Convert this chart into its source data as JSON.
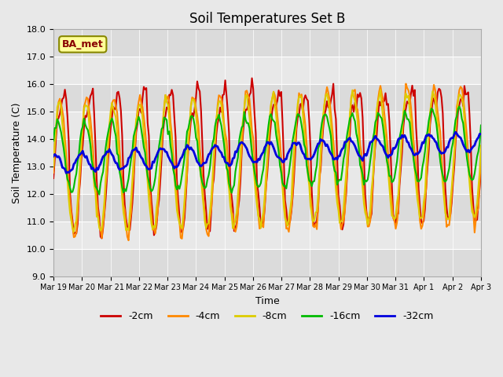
{
  "title": "Soil Temperatures Set B",
  "xlabel": "Time",
  "ylabel": "Soil Temperature (C)",
  "ylim": [
    9.0,
    18.0
  ],
  "yticks": [
    9.0,
    10.0,
    11.0,
    12.0,
    13.0,
    14.0,
    15.0,
    16.0,
    17.0,
    18.0
  ],
  "xtick_labels": [
    "Mar 19",
    "Mar 20",
    "Mar 21",
    "Mar 22",
    "Mar 23",
    "Mar 24",
    "Mar 25",
    "Mar 26",
    "Mar 27",
    "Mar 28",
    "Mar 29",
    "Mar 30",
    "Mar 31",
    "Apr 1",
    "Apr 2",
    "Apr 3"
  ],
  "bg_color": "#e8e8e8",
  "plot_bg": "#f0f0f0",
  "legend_label": "BA_met",
  "series": {
    "neg2cm": {
      "color": "#cc0000",
      "label": "-2cm",
      "lw": 1.5
    },
    "neg4cm": {
      "color": "#ff8800",
      "label": "-4cm",
      "lw": 1.5
    },
    "neg8cm": {
      "color": "#ddcc00",
      "label": "-8cm",
      "lw": 1.5
    },
    "neg16cm": {
      "color": "#00bb00",
      "label": "-16cm",
      "lw": 1.5
    },
    "neg32cm": {
      "color": "#0000dd",
      "label": "-32cm",
      "lw": 2.0
    }
  },
  "n_points": 337,
  "start_day": 0,
  "end_day": 16
}
